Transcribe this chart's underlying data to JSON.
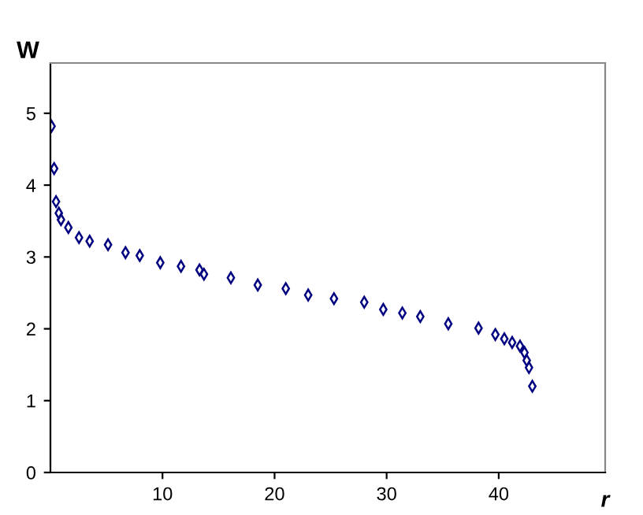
{
  "chart_data": {
    "type": "scatter",
    "xlabel": "r",
    "ylabel": "W",
    "x": [
      0.1,
      0.33,
      0.5,
      0.75,
      0.94,
      1.6,
      2.55,
      3.5,
      5.14,
      6.7,
      7.97,
      9.8,
      11.65,
      13.3,
      13.7,
      16.1,
      18.5,
      21.0,
      23.0,
      25.3,
      28.0,
      29.7,
      31.4,
      33.0,
      35.5,
      38.2,
      39.7,
      40.5,
      41.2,
      41.9,
      42.3,
      42.5,
      42.7,
      43.0
    ],
    "series": [
      {
        "color": "#000080",
        "values": [
          4.82,
          4.23,
          3.77,
          3.61,
          3.52,
          3.41,
          3.27,
          3.22,
          3.17,
          3.06,
          3.02,
          2.92,
          2.87,
          2.82,
          2.76,
          2.71,
          2.61,
          2.56,
          2.47,
          2.42,
          2.37,
          2.27,
          2.22,
          2.17,
          2.07,
          2.01,
          1.92,
          1.86,
          1.81,
          1.76,
          1.67,
          1.56,
          1.46,
          1.2
        ]
      }
    ],
    "xlim": [
      0,
      49.5
    ],
    "ylim": [
      0,
      5.7
    ],
    "xticks": [
      10,
      20,
      30,
      40
    ],
    "yticks": [
      0,
      1,
      2,
      3,
      4,
      5
    ],
    "marker": "diamond",
    "grid": false,
    "legend": false
  }
}
